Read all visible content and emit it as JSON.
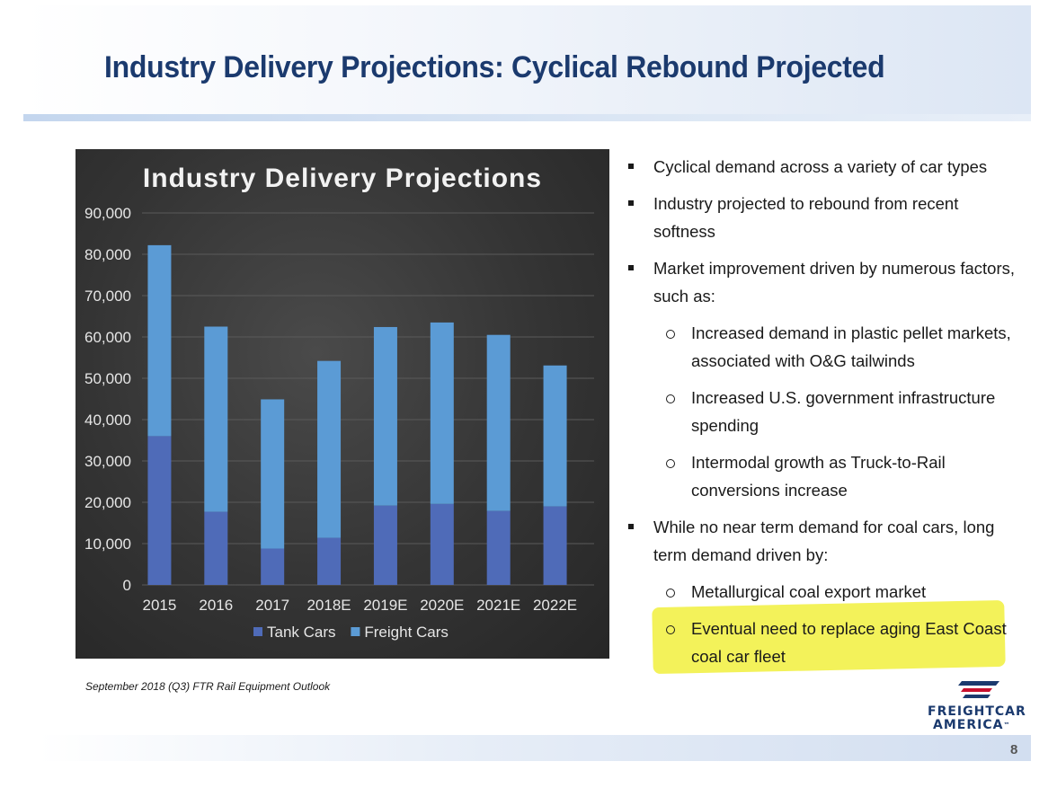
{
  "slide": {
    "title": "Industry Delivery Projections: Cyclical Rebound Projected",
    "source_note": "September 2018 (Q3) FTR Rail Equipment Outlook",
    "page_number": "8",
    "logo": {
      "line1": "FREIGHTCAR",
      "line2": "AMERICA",
      "mark": "™"
    }
  },
  "bullets": [
    {
      "level": 1,
      "text": "Cyclical demand across a variety of car types"
    },
    {
      "level": 1,
      "text": "Industry projected to rebound from recent softness"
    },
    {
      "level": 1,
      "text": "Market improvement driven by numerous factors, such as:"
    },
    {
      "level": 2,
      "text": "Increased demand in plastic pellet markets, associated with O&G tailwinds"
    },
    {
      "level": 2,
      "text": "Increased U.S. government infrastructure spending"
    },
    {
      "level": 2,
      "text": "Intermodal growth as Truck-to-Rail conversions increase"
    },
    {
      "level": 1,
      "text": "While no near term demand for coal cars, long term demand driven by:"
    },
    {
      "level": 2,
      "text": "Metallurgical coal export market"
    },
    {
      "level": 2,
      "text": "Eventual need to replace aging East Coast coal car fleet",
      "highlighted": true
    }
  ],
  "colors": {
    "title": "#1b3a6e",
    "tank_cars": "#4f6bb8",
    "freight_cars": "#5b9bd5",
    "highlight": "#f3f25a"
  },
  "chart_data": {
    "type": "bar",
    "stacked": true,
    "title": "Industry Delivery Projections",
    "categories": [
      "2015",
      "2016",
      "2017",
      "2018E",
      "2019E",
      "2020E",
      "2021E",
      "2022E"
    ],
    "series": [
      {
        "name": "Tank Cars",
        "values": [
          36000,
          17700,
          8800,
          11400,
          19200,
          19600,
          17900,
          19000
        ]
      },
      {
        "name": "Freight Cars",
        "values": [
          46200,
          44800,
          36100,
          42800,
          43200,
          43900,
          42600,
          34100
        ]
      }
    ],
    "yticks": [
      "0",
      "10,000",
      "20,000",
      "30,000",
      "40,000",
      "50,000",
      "60,000",
      "70,000",
      "80,000",
      "90,000"
    ],
    "ylim": [
      0,
      90000
    ],
    "grid": true,
    "legend_position": "bottom"
  }
}
